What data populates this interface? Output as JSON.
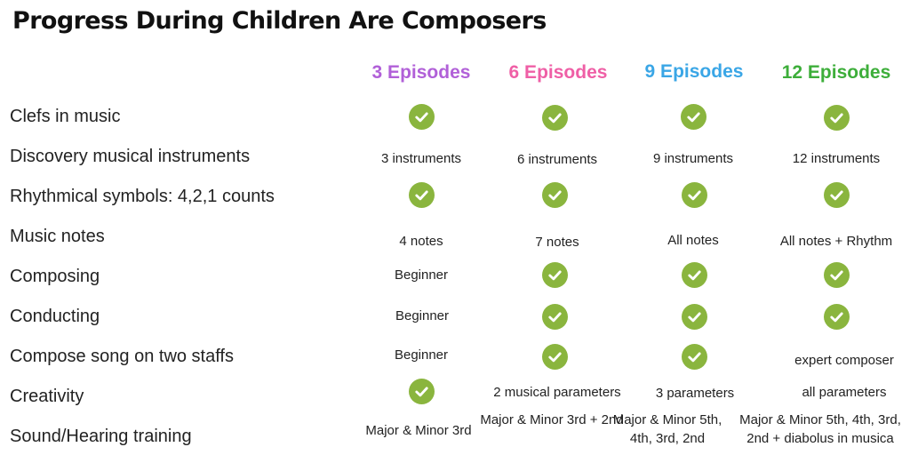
{
  "title": "Progress During Children Are Composers",
  "colors": {
    "col3": "#b160d8",
    "col6": "#ef5fa6",
    "col9": "#3aa6e6",
    "col12": "#3dae3a",
    "check": "#8ab53e"
  },
  "columns": [
    "3 Episodes",
    "6 Episodes",
    "9 Episodes",
    "12 Episodes"
  ],
  "rows": [
    {
      "label": "Clefs in music",
      "cells": [
        "check-icon",
        "check-icon",
        "check-icon",
        "check-icon"
      ]
    },
    {
      "label": "Discovery musical instruments",
      "cells": [
        "3 instruments",
        "6 instruments",
        "9 instruments",
        "12 instruments"
      ]
    },
    {
      "label": "Rhythmical symbols: 4,2,1 counts",
      "cells": [
        "check-icon",
        "check-icon",
        "check-icon",
        "check-icon"
      ]
    },
    {
      "label": "Music notes",
      "cells": [
        "4 notes",
        "7 notes",
        "All notes",
        "All notes + Rhythm"
      ]
    },
    {
      "label": "Composing",
      "cells": [
        "Beginner",
        "check-icon",
        "check-icon",
        "check-icon"
      ]
    },
    {
      "label": "Conducting",
      "cells": [
        "Beginner",
        "check-icon",
        "check-icon",
        "check-icon"
      ]
    },
    {
      "label": "Compose song on two staffs",
      "cells": [
        "Beginner",
        "check-icon",
        "check-icon",
        "expert composer"
      ]
    },
    {
      "label": "Creativity",
      "cells": [
        "check-icon",
        "2 musical parameters",
        "3 parameters",
        "all parameters"
      ]
    },
    {
      "label": "Sound/Hearing training",
      "cells": [
        "Major & Minor 3rd",
        "Major & Minor 3rd + 2nd",
        "Major & Minor 5th, 4th, 3rd, 2nd",
        "Major & Minor 5th, 4th, 3rd, 2nd + diabolus in musica"
      ]
    }
  ]
}
